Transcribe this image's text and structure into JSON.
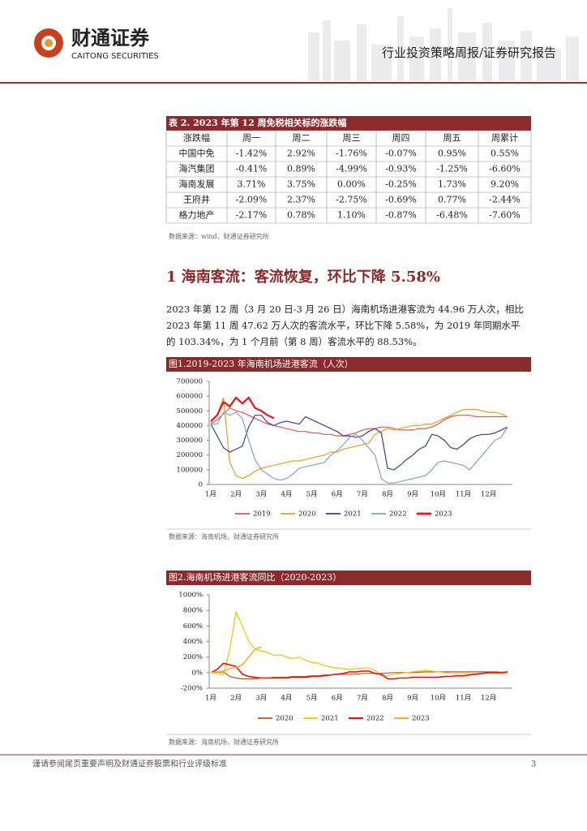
{
  "header": {
    "company": "财通证券",
    "company_en": "CAITONG SECURITIES",
    "report_type": "行业投资策略周报/证券研究报告"
  },
  "table": {
    "title": "表 2. 2023 年第 12 周免税相关标的涨跌幅",
    "columns": [
      "涨跌幅",
      "周一",
      "周二",
      "周三",
      "周四",
      "周五",
      "周累计"
    ],
    "rows": [
      [
        "中国中免",
        "-1.42%",
        "2.92%",
        "-1.76%",
        "-0.07%",
        "0.95%",
        "0.55%"
      ],
      [
        "海汽集团",
        "-0.41%",
        "0.89%",
        "-4.99%",
        "-0.93%",
        "-1.25%",
        "-6.60%"
      ],
      [
        "海南发展",
        "3.71%",
        "3.75%",
        "0.00%",
        "-0.25%",
        "1.73%",
        "9.20%"
      ],
      [
        "王府井",
        "-2.09%",
        "2.37%",
        "-2.75%",
        "-0.69%",
        "0.77%",
        "-2.44%"
      ],
      [
        "格力地产",
        "-2.17%",
        "0.78%",
        "1.10%",
        "-0.87%",
        "-6.48%",
        "-7.60%"
      ]
    ],
    "source": "数据来源：wind，财通证券研究所"
  },
  "section": {
    "title": "1 海南客流：客流恢复，环比下降 5.58%",
    "paragraph": [
      "2023 年第 12 周（3 月 20 日-3 月 26 日）海南机场进港客流为 44.96 万人次，相比",
      "2023 年第 11 周 47.62 万人次的客流水平，环比下降 5.58%，为 2019 年同期水平",
      "的 103.34%，为 1 个月前（第 8 周）客流水平的 88.53%。"
    ]
  },
  "chart_data": [
    {
      "type": "line",
      "title": "图1.2019-2023 年海南机场进港客流（人次）",
      "source": "数据来源：海南机场，财通证券研究所",
      "categories": [
        "1月",
        null,
        null,
        null,
        "2月",
        null,
        null,
        null,
        "3月",
        null,
        null,
        null,
        "4月",
        null,
        null,
        null,
        "5月",
        null,
        null,
        null,
        "6月",
        null,
        null,
        null,
        "7月",
        null,
        null,
        null,
        "8月",
        null,
        null,
        null,
        "9月",
        null,
        null,
        null,
        "10月",
        null,
        null,
        null,
        "11月",
        null,
        null,
        null,
        "12月",
        null,
        null,
        null
      ],
      "ylim": [
        0,
        700000
      ],
      "yticks": [
        0,
        100000,
        200000,
        300000,
        400000,
        500000,
        600000,
        700000
      ],
      "series": [
        {
          "name": "2019",
          "color": "#d9595b",
          "width": 1.2,
          "values": [
            410000,
            440000,
            480000,
            520000,
            500000,
            490000,
            470000,
            450000,
            430000,
            410000,
            400000,
            390000,
            380000,
            370000,
            360000,
            360000,
            350000,
            350000,
            340000,
            340000,
            330000,
            330000,
            340000,
            350000,
            370000,
            380000,
            380000,
            390000,
            390000,
            380000,
            370000,
            370000,
            370000,
            380000,
            380000,
            390000,
            410000,
            440000,
            460000,
            470000,
            470000,
            470000,
            460000,
            460000,
            460000,
            460000,
            460000,
            460000
          ]
        },
        {
          "name": "2020",
          "color": "#e3a02c",
          "width": 1.2,
          "values": [
            420000,
            470000,
            590000,
            150000,
            60000,
            40000,
            60000,
            90000,
            110000,
            120000,
            130000,
            140000,
            150000,
            160000,
            160000,
            170000,
            180000,
            190000,
            200000,
            220000,
            220000,
            240000,
            250000,
            260000,
            270000,
            280000,
            340000,
            360000,
            380000,
            370000,
            380000,
            390000,
            400000,
            400000,
            410000,
            410000,
            430000,
            450000,
            470000,
            490000,
            510000,
            510000,
            510000,
            500000,
            490000,
            490000,
            480000,
            460000
          ]
        },
        {
          "name": "2021",
          "color": "#3b3f8c",
          "width": 1.2,
          "values": [
            410000,
            330000,
            250000,
            220000,
            240000,
            260000,
            390000,
            470000,
            470000,
            420000,
            400000,
            420000,
            430000,
            420000,
            410000,
            460000,
            440000,
            420000,
            400000,
            380000,
            360000,
            330000,
            330000,
            320000,
            330000,
            360000,
            380000,
            350000,
            110000,
            100000,
            130000,
            170000,
            200000,
            240000,
            260000,
            340000,
            330000,
            300000,
            250000,
            240000,
            270000,
            310000,
            330000,
            340000,
            340000,
            350000,
            370000,
            390000
          ]
        },
        {
          "name": "2022",
          "color": "#7fa8b6",
          "width": 1.2,
          "values": [
            410000,
            410000,
            490000,
            470000,
            490000,
            450000,
            300000,
            170000,
            100000,
            70000,
            40000,
            30000,
            40000,
            70000,
            110000,
            120000,
            130000,
            140000,
            150000,
            200000,
            230000,
            270000,
            320000,
            340000,
            300000,
            250000,
            200000,
            40000,
            10000,
            10000,
            20000,
            30000,
            40000,
            50000,
            60000,
            100000,
            150000,
            160000,
            150000,
            140000,
            130000,
            100000,
            150000,
            200000,
            250000,
            300000,
            320000,
            390000
          ]
        },
        {
          "name": "2023",
          "color": "#e8141a",
          "width": 2.2,
          "values": [
            430000,
            470000,
            560000,
            530000,
            590000,
            550000,
            590000,
            520000,
            500000,
            470000,
            450000,
            null,
            null,
            null,
            null,
            null,
            null,
            null,
            null,
            null,
            null,
            null,
            null,
            null,
            null,
            null,
            null,
            null,
            null,
            null,
            null,
            null,
            null,
            null,
            null,
            null,
            null,
            null,
            null,
            null,
            null,
            null,
            null,
            null,
            null,
            null,
            null,
            null
          ]
        }
      ]
    },
    {
      "type": "line",
      "title": "图2.海南机场进港客流同比（2020-2023）",
      "source": "数据来源：海南机场，财通证券研究所",
      "categories": [
        "1月",
        null,
        null,
        null,
        "2月",
        null,
        null,
        null,
        "3月",
        null,
        null,
        null,
        "4月",
        null,
        null,
        null,
        "5月",
        null,
        null,
        null,
        "6月",
        null,
        null,
        null,
        "7月",
        null,
        null,
        null,
        "8月",
        null,
        null,
        null,
        "9月",
        null,
        null,
        null,
        "10月",
        null,
        null,
        null,
        "11月",
        null,
        null,
        null,
        "12月",
        null,
        null,
        null
      ],
      "ylim": [
        -200,
        1000
      ],
      "yticks": [
        {
          "value": -200,
          "label": "-200%"
        },
        {
          "value": 0,
          "label": "0%"
        },
        {
          "value": 200,
          "label": "200%"
        },
        {
          "value": 400,
          "label": "400%"
        },
        {
          "value": 600,
          "label": "600%"
        },
        {
          "value": 800,
          "label": "800%"
        },
        {
          "value": 1000,
          "label": "1000%"
        }
      ],
      "series": [
        {
          "name": "2020",
          "color": "#b35a1f",
          "width": 1.2,
          "values": [
            0,
            5,
            10,
            -50,
            -70,
            -80,
            -80,
            -80,
            -70,
            -70,
            -60,
            -60,
            -60,
            -50,
            -50,
            -50,
            -40,
            -40,
            -30,
            -30,
            -20,
            -20,
            -20,
            -20,
            -10,
            -10,
            -10,
            -10,
            -5,
            0,
            0,
            0,
            0,
            5,
            10,
            10,
            10,
            10,
            10,
            10,
            10,
            10,
            10,
            10,
            10,
            10,
            5,
            5
          ]
        },
        {
          "name": "2021",
          "color": "#f2c400",
          "width": 1.2,
          "values": [
            0,
            -10,
            -30,
            300,
            780,
            600,
            400,
            300,
            280,
            260,
            220,
            230,
            200,
            180,
            200,
            160,
            130,
            120,
            90,
            70,
            60,
            50,
            40,
            50,
            60,
            60,
            30,
            -40,
            -40,
            -20,
            -10,
            0,
            10,
            20,
            30,
            20,
            10,
            0,
            -10,
            -10,
            -10,
            -10,
            -10,
            -10,
            -10,
            -10,
            -10,
            -10
          ]
        },
        {
          "name": "2022",
          "color": "#e8141a",
          "width": 1.6,
          "values": [
            0,
            40,
            120,
            100,
            80,
            -20,
            -50,
            -60,
            -70,
            -70,
            -70,
            -70,
            -70,
            -60,
            -60,
            -60,
            -50,
            -50,
            -40,
            -30,
            -20,
            -10,
            10,
            10,
            20,
            20,
            -10,
            -20,
            -80,
            -80,
            -70,
            -70,
            -60,
            -60,
            -60,
            -60,
            -60,
            -50,
            -50,
            -40,
            -40,
            -30,
            -20,
            -10,
            0,
            0,
            0,
            10
          ]
        },
        {
          "name": "2023",
          "color": "#f4b23a",
          "width": 1.6,
          "values": [
            0,
            10,
            20,
            50,
            70,
            100,
            200,
            300,
            330,
            null,
            null,
            null,
            null,
            null,
            null,
            null,
            null,
            null,
            null,
            null,
            null,
            null,
            null,
            null,
            null,
            null,
            null,
            null,
            null,
            null,
            null,
            null,
            null,
            null,
            null,
            null,
            null,
            null,
            null,
            null,
            null,
            null,
            null,
            null,
            null,
            null,
            null,
            null
          ]
        }
      ]
    }
  ],
  "footer": {
    "disclaimer": "谨请参阅尾页重要声明及财通证券股票和行业评级标准",
    "page": "3"
  }
}
